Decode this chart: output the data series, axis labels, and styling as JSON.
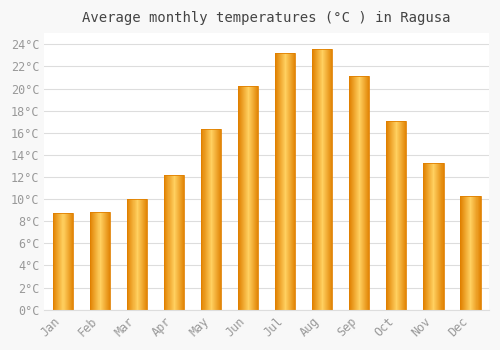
{
  "title": "Average monthly temperatures (°C ) in Ragusa",
  "months": [
    "Jan",
    "Feb",
    "Mar",
    "Apr",
    "May",
    "Jun",
    "Jul",
    "Aug",
    "Sep",
    "Oct",
    "Nov",
    "Dec"
  ],
  "temperatures": [
    8.7,
    8.8,
    10.0,
    12.2,
    16.3,
    20.2,
    23.2,
    23.6,
    21.1,
    17.1,
    13.3,
    10.3
  ],
  "bar_color_main": "#FFA500",
  "bar_color_light": "#FFD060",
  "bar_color_dark": "#E08000",
  "background_color": "#F8F8F8",
  "plot_bg_color": "#FFFFFF",
  "grid_color": "#DDDDDD",
  "ylim": [
    0,
    25
  ],
  "ytick_step": 2,
  "title_fontsize": 10,
  "tick_fontsize": 8.5,
  "tick_color": "#999999",
  "title_color": "#444444",
  "font_family": "monospace"
}
